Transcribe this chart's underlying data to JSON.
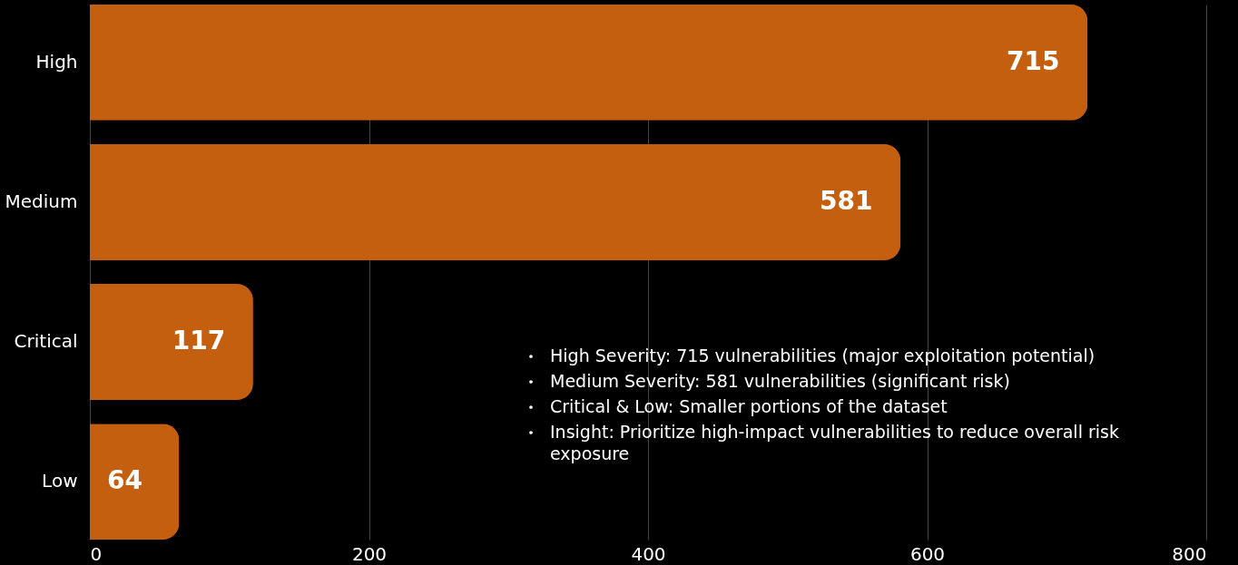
{
  "chart_data": {
    "type": "bar",
    "orientation": "horizontal",
    "categories": [
      "High",
      "Medium",
      "Critical",
      "Low"
    ],
    "values": [
      715,
      581,
      117,
      64
    ],
    "color": "#c55f10",
    "xlim": [
      0,
      800
    ],
    "xticks": [
      0,
      200,
      400,
      600,
      800
    ],
    "grid": "x",
    "data_labels": true,
    "annotations": [
      "High Severity: 715 vulnerabilities (major exploitation potential)",
      "Medium Severity: 581 vulnerabilities (significant risk)",
      "Critical & Low: Smaller portions of the dataset",
      "Insight: Prioritize high-impact vulnerabilities to reduce overall risk exposure"
    ]
  }
}
